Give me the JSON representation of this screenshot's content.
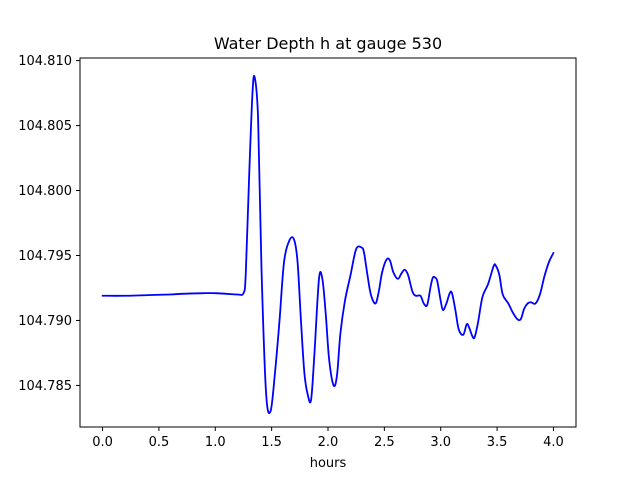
{
  "chart_data": {
    "type": "line",
    "title": "Water Depth h at gauge 530",
    "xlabel": "hours",
    "ylabel": "",
    "xlim": [
      -0.2,
      4.2
    ],
    "ylim": [
      104.7818,
      104.8102
    ],
    "grid": false,
    "legend": "none",
    "x_ticks": [
      {
        "value": 0.0,
        "label": "0.0"
      },
      {
        "value": 0.5,
        "label": "0.5"
      },
      {
        "value": 1.0,
        "label": "1.0"
      },
      {
        "value": 1.5,
        "label": "1.5"
      },
      {
        "value": 2.0,
        "label": "2.0"
      },
      {
        "value": 2.5,
        "label": "2.5"
      },
      {
        "value": 3.0,
        "label": "3.0"
      },
      {
        "value": 3.5,
        "label": "3.5"
      },
      {
        "value": 4.0,
        "label": "4.0"
      }
    ],
    "y_ticks": [
      {
        "value": 104.785,
        "label": "104.785"
      },
      {
        "value": 104.79,
        "label": "104.790"
      },
      {
        "value": 104.795,
        "label": "104.795"
      },
      {
        "value": 104.8,
        "label": "104.800"
      },
      {
        "value": 104.805,
        "label": "104.805"
      },
      {
        "value": 104.81,
        "label": "104.810"
      }
    ],
    "series": [
      {
        "color": "#0000ff",
        "x": [
          0.0,
          0.2,
          0.4,
          0.6,
          0.7,
          0.8,
          0.9,
          1.0,
          1.1,
          1.2,
          1.25,
          1.27,
          1.3,
          1.33,
          1.35,
          1.38,
          1.41,
          1.45,
          1.49,
          1.53,
          1.57,
          1.61,
          1.66,
          1.7,
          1.73,
          1.76,
          1.79,
          1.82,
          1.85,
          1.88,
          1.92,
          1.95,
          1.98,
          2.01,
          2.05,
          2.08,
          2.11,
          2.15,
          2.2,
          2.25,
          2.3,
          2.32,
          2.35,
          2.38,
          2.42,
          2.45,
          2.48,
          2.52,
          2.55,
          2.58,
          2.62,
          2.65,
          2.68,
          2.71,
          2.75,
          2.78,
          2.82,
          2.85,
          2.88,
          2.91,
          2.93,
          2.95,
          2.97,
          3.0,
          3.02,
          3.05,
          3.08,
          3.1,
          3.13,
          3.16,
          3.2,
          3.23,
          3.25,
          3.28,
          3.3,
          3.33,
          3.37,
          3.42,
          3.47,
          3.49,
          3.52,
          3.55,
          3.6,
          3.64,
          3.68,
          3.71,
          3.74,
          3.77,
          3.8,
          3.84,
          3.88,
          3.92,
          3.96,
          4.0
        ],
        "values": [
          104.7919,
          104.7919,
          104.79195,
          104.792,
          104.79205,
          104.79208,
          104.7921,
          104.7921,
          104.79205,
          104.792,
          104.7921,
          104.7935,
          104.801,
          104.8075,
          104.8087,
          104.8055,
          104.794,
          104.7845,
          104.783,
          104.786,
          104.79,
          104.7945,
          104.7962,
          104.7962,
          104.7945,
          104.79,
          104.786,
          104.7843,
          104.7839,
          104.7875,
          104.7932,
          104.7932,
          104.7905,
          104.787,
          104.785,
          104.7858,
          104.789,
          104.7915,
          104.7935,
          104.7955,
          104.7956,
          104.7952,
          104.7935,
          104.792,
          104.7913,
          104.7922,
          104.7937,
          104.7947,
          104.7946,
          104.7937,
          104.7932,
          104.7936,
          104.7939,
          104.7935,
          104.7922,
          104.7919,
          104.7919,
          104.7913,
          104.7912,
          104.7926,
          104.7933,
          104.7933,
          104.793,
          104.7915,
          104.7908,
          104.7913,
          104.7921,
          104.7921,
          104.7908,
          104.7893,
          104.7889,
          104.7897,
          104.7895,
          104.7888,
          104.7887,
          104.7898,
          104.7918,
          104.7928,
          104.7942,
          104.7942,
          104.7935,
          104.792,
          104.7913,
          104.7906,
          104.7901,
          104.7901,
          104.7909,
          104.7913,
          104.7914,
          104.7913,
          104.792,
          104.7934,
          104.7945,
          104.7952
        ]
      }
    ]
  }
}
